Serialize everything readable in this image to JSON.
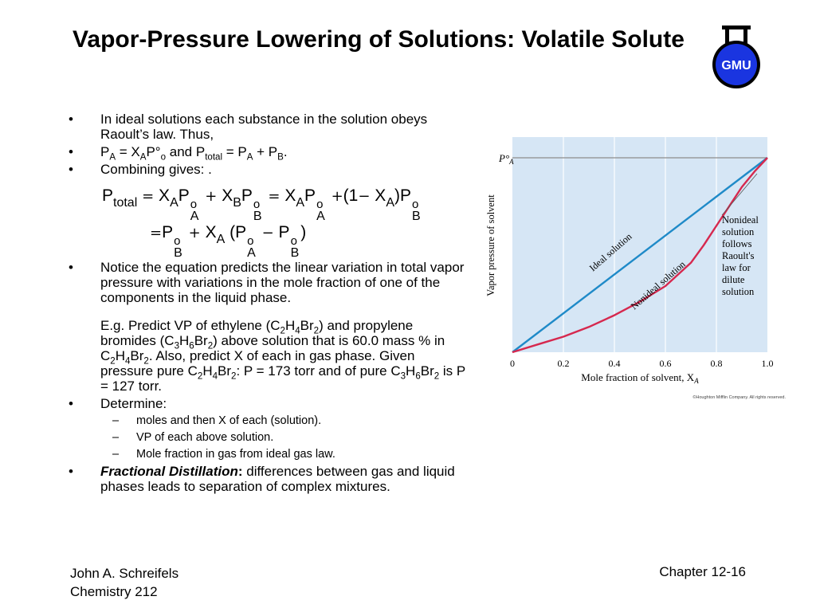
{
  "title": "Vapor-Pressure Lowering of Solutions: Volatile Solute",
  "logo_text": "GMU",
  "bullet_char": "•",
  "bullets": {
    "b1": "In ideal solutions each substance in the solution obeys Raoult’s law.  Thus,",
    "b2": {
      "p1": "P",
      "sub1": "A",
      "eq1": " = X",
      "sub2": "A",
      "p2": "P°",
      "sub3": "o",
      "and": " and P",
      "sub4": "total",
      "eq2": " = P",
      "sub5": "A",
      "plus": " + P",
      "sub6": "B",
      "end": "."
    },
    "b3": "Combining gives: .",
    "b4": "Notice the equation predicts the linear variation in total vapor pressure with variations in the mole fraction of one of the components in the liquid phase.",
    "example": {
      "t1": "E.g. Predict VP of ethylene (C",
      "s1": "2",
      "t2": "H",
      "s2": "4",
      "t3": "Br",
      "s3": "2",
      "t4": ") and propylene bromides (C",
      "s4": "3",
      "t5": "H",
      "s5": "6",
      "t6": "Br",
      "s6": "2",
      "t7": ") above solution that is 60.0 mass % in C",
      "s7": "2",
      "t8": "H",
      "s8": "4",
      "t9": "Br",
      "s9": "2",
      "t10": ".  Also, predict X of each in gas phase. Given pressure pure C",
      "s10": "2",
      "t11": "H",
      "s11": "4",
      "t12": "Br",
      "s12": "2",
      "t13": ": P = 173 torr and of pure C",
      "s13": "3",
      "t14": "H",
      "s14": "6",
      "t15": "Br",
      "s15": "2",
      "t16": " is P = 127 torr."
    },
    "b5": "Determine:",
    "sub_dash": "–",
    "subs": [
      "moles and then X of each (solution).",
      "VP of each above solution.",
      "Mole fraction in gas from ideal gas law."
    ],
    "b6_bold": "Fractional Distillation",
    "b6_colon": ":",
    "b6_rest": " differences between gas and liquid phases leads to separation of complex mixtures."
  },
  "equation": {
    "P": "P",
    "total": "total",
    "eq": "=",
    "plus": "+",
    "minus": "−",
    "X": "X",
    "A": "A",
    "B": "B",
    "o": "o",
    "one": "(1",
    "close": ")P",
    "open": "(P",
    "close2": ")"
  },
  "footer": {
    "author": "John A. Schreifels",
    "course": "Chemistry 212",
    "chapter": "Chapter 12-16"
  },
  "chart_data": {
    "type": "line",
    "xlabel": "Mole fraction of solvent, X",
    "xlabel_sub": "A",
    "ylabel": "Vapor pressure of solvent",
    "ytick": "P°",
    "ytick_sub": "A",
    "x_ticks": [
      "0",
      "0.2",
      "0.4",
      "0.6",
      "0.8",
      "1.0"
    ],
    "xlim": [
      0,
      1
    ],
    "ylim": [
      0,
      1
    ],
    "series": [
      {
        "name": "Ideal solution",
        "color": "#1f8ac8",
        "x": [
          0,
          1
        ],
        "y": [
          0,
          1
        ]
      },
      {
        "name": "Nonideal solution",
        "color": "#d6284e",
        "x": [
          0,
          0.1,
          0.2,
          0.3,
          0.4,
          0.5,
          0.6,
          0.7,
          0.75,
          0.8,
          0.85,
          0.9,
          0.95,
          1.0
        ],
        "y": [
          0,
          0.04,
          0.08,
          0.13,
          0.19,
          0.26,
          0.34,
          0.46,
          0.55,
          0.65,
          0.75,
          0.85,
          0.93,
          1.0
        ]
      }
    ],
    "annotation": "Nonideal solution follows Raoult's law for dilute solution",
    "copyright": "©Houghton Mifflin Company.  All rights reserved.",
    "grid": true,
    "colors": {
      "background": "#d6e6f5",
      "grid": "#ffffff",
      "reference_line": "#8c8c8c"
    }
  }
}
